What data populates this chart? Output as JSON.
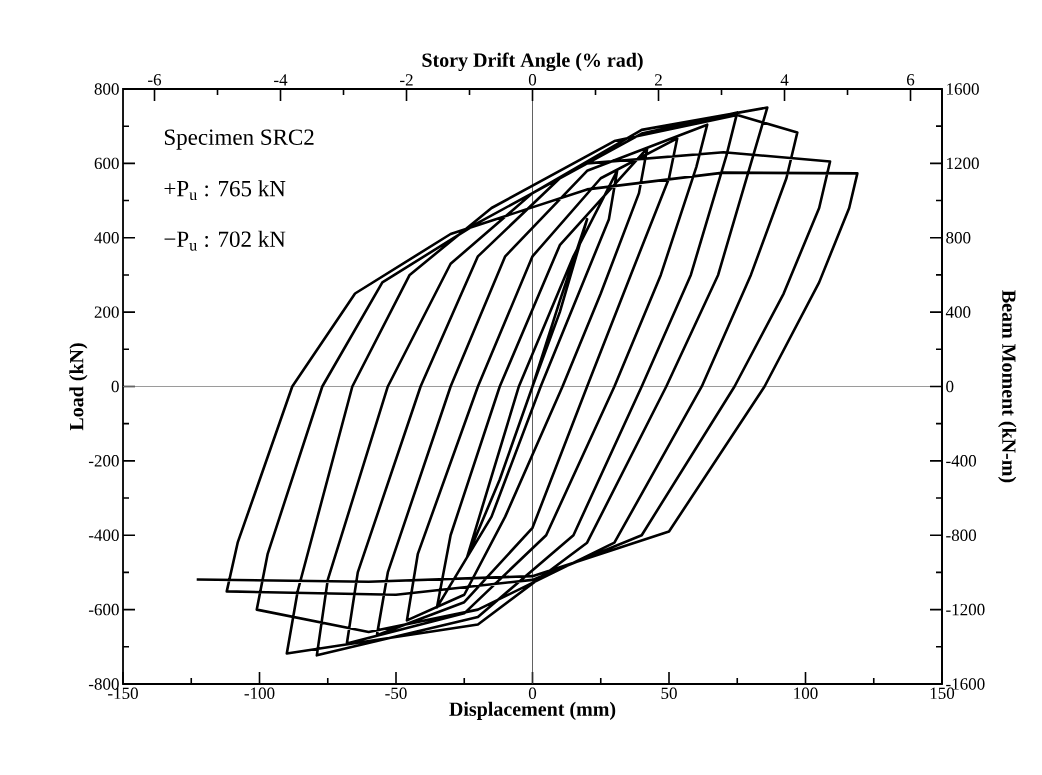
{
  "chart_data": {
    "type": "line",
    "xlabel": "Displacement (mm)",
    "ylabel": "Load (kN)",
    "x2label": "Story Drift Angle (% rad)",
    "y2label": "Beam Moment (kN-m)",
    "xlim": [
      -150,
      150
    ],
    "xticks": [
      -150,
      -100,
      -50,
      0,
      50,
      100,
      150
    ],
    "ylim": [
      -800,
      800
    ],
    "yticks": [
      -800,
      -600,
      -400,
      -200,
      0,
      200,
      400,
      600,
      800
    ],
    "x2lim": [
      -6.5,
      6.5
    ],
    "x2ticks": [
      -6,
      -4,
      -2,
      0,
      2,
      4,
      6
    ],
    "y2lim": [
      -1600,
      1600
    ],
    "y2ticks": [
      -1600,
      -1200,
      -800,
      -400,
      0,
      400,
      800,
      1200,
      1600
    ],
    "annotations": [
      "Specimen SRC2",
      "+P$_{u}$ : 765 kN",
      "−P$_{u}$ : 702 kN"
    ],
    "ref_lines": [
      {
        "axis": "x",
        "value": 0,
        "color": "#3a3a3a"
      },
      {
        "axis": "y",
        "value": 0,
        "color": "#808080"
      }
    ],
    "series": [
      {
        "color": "#000000",
        "line_style": "solid",
        "x": [
          0,
          10,
          20,
          10,
          0,
          -12,
          -24,
          -5,
          15,
          31,
          28,
          3,
          -15,
          -35,
          -30,
          -12,
          10,
          42,
          39,
          25,
          11,
          -10,
          -25,
          -46,
          -42,
          -20,
          0,
          25,
          53,
          50,
          36,
          20,
          0,
          -25,
          -57,
          -53,
          -30,
          -10,
          20,
          64,
          60,
          47,
          30,
          5,
          -25,
          -68,
          -64,
          -41,
          -20,
          10,
          40,
          75,
          71,
          58,
          40,
          15,
          -20,
          -79,
          -75,
          -53,
          -30,
          0,
          40,
          86,
          82,
          68,
          49,
          20,
          -20,
          -90,
          -86,
          -66,
          -45,
          -15,
          30,
          75,
          97,
          93,
          80,
          62,
          30,
          -20,
          -60,
          -101,
          -97,
          -77,
          -55,
          -20,
          20,
          70,
          109,
          105,
          92,
          74,
          40,
          0,
          -50,
          -112,
          -108,
          -88,
          -65,
          -30,
          20,
          70,
          119,
          116,
          105,
          85,
          50,
          0,
          -60,
          -123
        ],
        "values": [
          0,
          230,
          450,
          200,
          0,
          -250,
          -460,
          0,
          350,
          580,
          450,
          0,
          -350,
          -594,
          -400,
          0,
          380,
          640,
          520,
          250,
          0,
          -350,
          -560,
          -629,
          -450,
          0,
          350,
          560,
          667,
          560,
          300,
          0,
          -380,
          -580,
          -669,
          -500,
          0,
          350,
          580,
          704,
          590,
          300,
          0,
          -400,
          -610,
          -691,
          -500,
          0,
          350,
          560,
          680,
          737,
          620,
          300,
          0,
          -400,
          -620,
          -723,
          -520,
          0,
          330,
          520,
          690,
          750,
          650,
          300,
          0,
          -420,
          -640,
          -718,
          -550,
          0,
          300,
          480,
          660,
          730,
          683,
          560,
          300,
          0,
          -420,
          -600,
          -660,
          -600,
          -450,
          0,
          280,
          440,
          600,
          630,
          605,
          480,
          250,
          0,
          -400,
          -520,
          -560,
          -551,
          -420,
          0,
          250,
          410,
          530,
          575,
          573,
          480,
          280,
          0,
          -390,
          -510,
          -525,
          -519
        ]
      }
    ]
  }
}
